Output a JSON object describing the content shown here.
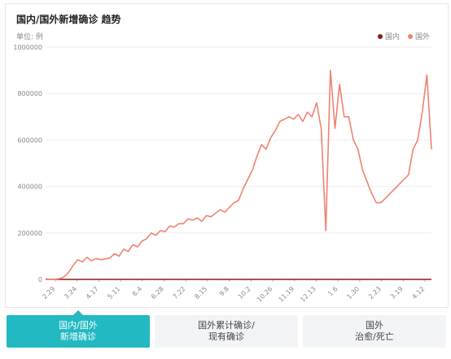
{
  "chart_data": {
    "type": "line",
    "title": "国内/国外新增确诊 趋势",
    "unit_label": "单位: 例",
    "legend_position": "top-right",
    "ylim": [
      0,
      1000000
    ],
    "yticks": [
      0,
      200000,
      400000,
      600000,
      800000,
      1000000
    ],
    "xtick_labels": [
      "2.29",
      "3.24",
      "4.17",
      "5.11",
      "6.4",
      "6.28",
      "7.22",
      "8.15",
      "9.8",
      "10.2",
      "10.26",
      "11.19",
      "12.13",
      "1.6",
      "1.30",
      "2.23",
      "3.19",
      "4.12"
    ],
    "series": [
      {
        "name": "国内",
        "color": "#8b1a1a",
        "values": [
          2000,
          300,
          100,
          50,
          50,
          50,
          50,
          50,
          50,
          50,
          50,
          50,
          50,
          50,
          50,
          50,
          50,
          50,
          50,
          50,
          50,
          50,
          50,
          50,
          50,
          50,
          50,
          50,
          50,
          50,
          50,
          50,
          50,
          50,
          50,
          50,
          50,
          50,
          50,
          50,
          50,
          50,
          50,
          50,
          50,
          50,
          50,
          50,
          50,
          50,
          50,
          50,
          50,
          50,
          50,
          50,
          50,
          50,
          50,
          50,
          50,
          50,
          50,
          50,
          50,
          50,
          50,
          50,
          50,
          50,
          50,
          50,
          50,
          50,
          50,
          50,
          50,
          50,
          50,
          50,
          50,
          50,
          50,
          50,
          50
        ]
      },
      {
        "name": "国外",
        "color": "#f08272",
        "values": [
          0,
          0,
          500,
          3000,
          10000,
          30000,
          60000,
          85000,
          75000,
          95000,
          80000,
          90000,
          85000,
          88000,
          92000,
          110000,
          100000,
          130000,
          120000,
          150000,
          140000,
          165000,
          175000,
          200000,
          190000,
          210000,
          205000,
          230000,
          225000,
          240000,
          240000,
          260000,
          255000,
          265000,
          250000,
          275000,
          270000,
          285000,
          300000,
          290000,
          310000,
          330000,
          340000,
          390000,
          430000,
          470000,
          530000,
          580000,
          560000,
          610000,
          640000,
          680000,
          690000,
          700000,
          690000,
          710000,
          680000,
          720000,
          700000,
          760000,
          650000,
          210000,
          900000,
          650000,
          840000,
          700000,
          700000,
          600000,
          560000,
          470000,
          420000,
          370000,
          330000,
          330000,
          350000,
          370000,
          390000,
          410000,
          430000,
          450000,
          560000,
          600000,
          720000,
          880000,
          560000
        ]
      }
    ]
  },
  "legend": {
    "domestic": "国内",
    "foreign": "国外"
  },
  "tabs": [
    {
      "line1": "国内/国外",
      "line2": "新增确诊"
    },
    {
      "line1": "国外累计确诊/",
      "line2": "现有确诊"
    },
    {
      "line1": "国外",
      "line2": "治愈/死亡"
    }
  ]
}
